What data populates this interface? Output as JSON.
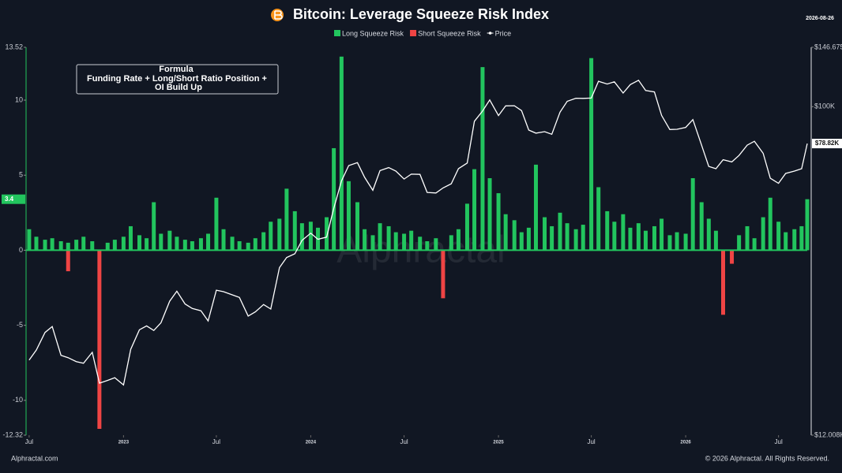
{
  "chart_data": {
    "type": "bar",
    "title": "Bitcoin: Leverage Squeeze Risk Index",
    "date": "2026-08-26",
    "formula_title": "Formula",
    "formula_lines": [
      "Funding Rate +  Long/Short Ratio Position +",
      "OI Build Up"
    ],
    "watermark": "Alphractal",
    "footer_left": "Alphractal.com",
    "footer_right": "© 2026 Alphractal. All Rights Reserved.",
    "x": [
      "2022-07-01",
      "2022-07-15",
      "2022-08-01",
      "2022-08-15",
      "2022-09-01",
      "2022-09-15",
      "2022-10-01",
      "2022-10-15",
      "2022-11-01",
      "2022-11-15",
      "2022-12-01",
      "2022-12-15",
      "2023-01-01",
      "2023-01-15",
      "2023-02-01",
      "2023-02-15",
      "2023-03-01",
      "2023-03-15",
      "2023-04-01",
      "2023-04-15",
      "2023-05-01",
      "2023-05-15",
      "2023-06-01",
      "2023-06-15",
      "2023-07-01",
      "2023-07-15",
      "2023-08-01",
      "2023-08-15",
      "2023-09-01",
      "2023-09-15",
      "2023-10-01",
      "2023-10-15",
      "2023-11-01",
      "2023-11-15",
      "2023-12-01",
      "2023-12-15",
      "2024-01-01",
      "2024-01-15",
      "2024-02-01",
      "2024-02-15",
      "2024-03-01",
      "2024-03-15",
      "2024-04-01",
      "2024-04-15",
      "2024-05-01",
      "2024-05-15",
      "2024-06-01",
      "2024-06-15",
      "2024-07-01",
      "2024-07-15",
      "2024-08-01",
      "2024-08-15",
      "2024-09-01",
      "2024-09-15",
      "2024-10-01",
      "2024-10-15",
      "2024-11-01",
      "2024-11-15",
      "2024-12-01",
      "2024-12-15",
      "2025-01-01",
      "2025-01-15",
      "2025-02-01",
      "2025-02-15",
      "2025-03-01",
      "2025-03-15",
      "2025-04-01",
      "2025-04-15",
      "2025-05-01",
      "2025-05-15",
      "2025-06-01",
      "2025-06-15",
      "2025-07-01",
      "2025-07-15",
      "2025-08-01",
      "2025-08-15",
      "2025-09-01",
      "2025-09-15",
      "2025-10-01",
      "2025-10-15",
      "2025-11-01",
      "2025-11-15",
      "2025-12-01",
      "2025-12-15",
      "2026-01-01",
      "2026-01-15",
      "2026-02-01",
      "2026-02-15",
      "2026-03-01",
      "2026-03-15",
      "2026-04-01",
      "2026-04-15",
      "2026-05-01",
      "2026-05-15",
      "2026-06-01",
      "2026-06-15",
      "2026-07-01",
      "2026-07-15",
      "2026-08-01",
      "2026-08-15",
      "2026-08-26"
    ],
    "xlim": [
      "2022-06-25",
      "2026-08-26"
    ],
    "xticks": [
      {
        "value": "2022-07-01",
        "label": "Jul"
      },
      {
        "value": "2023-01-01",
        "label": "2023"
      },
      {
        "value": "2023-07-01",
        "label": "Jul"
      },
      {
        "value": "2024-01-01",
        "label": "2024"
      },
      {
        "value": "2024-07-01",
        "label": "Jul"
      },
      {
        "value": "2025-01-01",
        "label": "2025"
      },
      {
        "value": "2025-07-01",
        "label": "Jul"
      },
      {
        "value": "2026-01-01",
        "label": "2026"
      },
      {
        "value": "2026-07-01",
        "label": "Jul"
      }
    ],
    "ylim": [
      -12.32,
      13.52
    ],
    "yticks": [
      13.52,
      10,
      5,
      0,
      -5,
      -10,
      -12.32
    ],
    "y2lim": [
      12008,
      146675
    ],
    "y2ticks": [
      {
        "value": 146675,
        "label": "$146.675K"
      },
      {
        "value": 100000,
        "label": "$100K"
      },
      {
        "value": 12008,
        "label": "$12.008K"
      }
    ],
    "y2_log": true,
    "last_price_label": "$78.82K",
    "series": [
      {
        "name": "Long Squeeze Risk",
        "color": "#22c55e",
        "values": [
          1.4,
          0.9,
          0.7,
          0.8,
          0.6,
          0.5,
          0.7,
          0.9,
          0.6,
          null,
          0.5,
          0.7,
          0.9,
          1.6,
          1.0,
          0.8,
          3.2,
          1.1,
          1.3,
          0.9,
          0.7,
          0.6,
          0.8,
          1.1,
          3.5,
          1.4,
          0.9,
          0.6,
          0.5,
          0.8,
          1.2,
          1.9,
          2.1,
          4.1,
          2.6,
          1.8,
          1.9,
          1.5,
          2.2,
          6.8,
          12.9,
          4.6,
          3.2,
          1.4,
          1.0,
          1.8,
          1.6,
          1.2,
          1.1,
          1.3,
          0.9,
          0.6,
          0.8,
          null,
          1.0,
          1.4,
          3.1,
          5.4,
          12.2,
          4.8,
          3.8,
          2.4,
          2.0,
          1.2,
          1.5,
          5.7,
          2.2,
          1.6,
          2.5,
          1.8,
          1.4,
          1.7,
          12.8,
          4.2,
          2.6,
          1.9,
          2.4,
          1.5,
          1.8,
          1.3,
          1.6,
          2.1,
          1.0,
          1.2,
          1.1,
          4.8,
          3.2,
          2.1,
          1.3,
          null,
          null,
          1.0,
          1.6,
          0.8,
          2.2,
          3.5,
          1.9,
          1.2,
          1.4,
          1.6,
          3.4
        ]
      },
      {
        "name": "Short Squeeze Risk",
        "color": "#ef4444",
        "values": [
          null,
          null,
          null,
          null,
          null,
          -1.4,
          null,
          null,
          null,
          -11.9,
          null,
          null,
          null,
          null,
          null,
          null,
          null,
          null,
          null,
          null,
          null,
          null,
          null,
          null,
          null,
          null,
          null,
          null,
          null,
          null,
          null,
          null,
          null,
          null,
          null,
          null,
          null,
          null,
          null,
          null,
          null,
          null,
          null,
          null,
          null,
          null,
          null,
          null,
          null,
          null,
          null,
          null,
          null,
          -3.2,
          null,
          null,
          null,
          null,
          null,
          null,
          null,
          null,
          null,
          null,
          null,
          null,
          null,
          null,
          null,
          null,
          null,
          null,
          null,
          null,
          null,
          null,
          null,
          null,
          null,
          null,
          null,
          null,
          null,
          null,
          null,
          null,
          null,
          null,
          null,
          -4.3,
          -0.9,
          null,
          null,
          null,
          null,
          null,
          null,
          null,
          null,
          null,
          null
        ]
      },
      {
        "name": "Price",
        "color": "#ffffff",
        "axis": "y2",
        "values": [
          19500,
          20800,
          23300,
          24200,
          20100,
          19800,
          19300,
          19100,
          20500,
          16800,
          17100,
          17400,
          16600,
          20900,
          23700,
          24300,
          23600,
          24800,
          28500,
          30400,
          28000,
          27200,
          26800,
          25100,
          30600,
          30300,
          29700,
          29200,
          25900,
          26600,
          27900,
          27100,
          35400,
          37800,
          38700,
          42200,
          44200,
          42500,
          43100,
          51900,
          62000,
          68400,
          69700,
          63400,
          58300,
          66200,
          67500,
          66000,
          62700,
          64700,
          64600,
          57500,
          57300,
          59200,
          60800,
          67000,
          69500,
          91000,
          97200,
          104400,
          94400,
          100500,
          100600,
          97500,
          86000,
          84300,
          85100,
          83700,
          96500,
          103500,
          105600,
          105500,
          105700,
          117800,
          115700,
          117400,
          109200,
          115300,
          118600,
          111000,
          110000,
          94500,
          86300,
          86400,
          87500,
          92000,
          78000,
          68000,
          67000,
          71000,
          70000,
          73000,
          78000,
          80000,
          74000,
          63000,
          61000,
          65000,
          66000,
          67000,
          78820
        ]
      }
    ]
  }
}
